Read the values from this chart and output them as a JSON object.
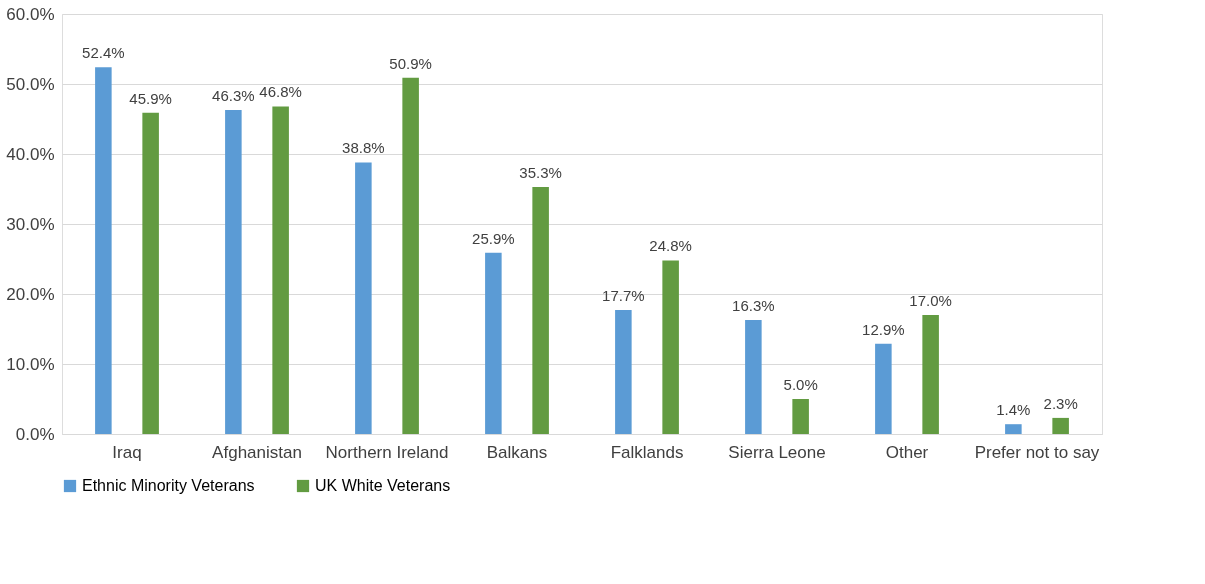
{
  "chart_data": {
    "type": "bar",
    "categories": [
      "Iraq",
      "Afghanistan",
      "Northern Ireland",
      "Balkans",
      "Falklands",
      "Sierra Leone",
      "Other",
      "Prefer not to say"
    ],
    "series": [
      {
        "name": "Ethnic Minority Veterans",
        "color": "#5b9bd5",
        "values": [
          52.4,
          46.3,
          38.8,
          25.9,
          17.7,
          16.3,
          12.9,
          1.4
        ],
        "value_labels": [
          "52.4%",
          "46.3%",
          "38.8%",
          "25.9%",
          "17.7%",
          "16.3%",
          "12.9%",
          "1.4%"
        ]
      },
      {
        "name": "UK White Veterans",
        "color": "#629b41",
        "values": [
          45.9,
          46.8,
          50.9,
          35.3,
          24.8,
          5.0,
          17.0,
          2.3
        ],
        "value_labels": [
          "45.9%",
          "46.8%",
          "50.9%",
          "35.3%",
          "24.8%",
          "5.0%",
          "17.0%",
          "2.3%"
        ]
      }
    ],
    "ylim": [
      0,
      60
    ],
    "yticks": [
      {
        "value": 0,
        "label": "0.0%"
      },
      {
        "value": 10,
        "label": "10.0%"
      },
      {
        "value": 20,
        "label": "20.0%"
      },
      {
        "value": 30,
        "label": "30.0%"
      },
      {
        "value": 40,
        "label": "40.0%"
      },
      {
        "value": 50,
        "label": "50.0%"
      },
      {
        "value": 60,
        "label": "60.0%"
      }
    ],
    "grid": "y",
    "legend": "bottom"
  }
}
